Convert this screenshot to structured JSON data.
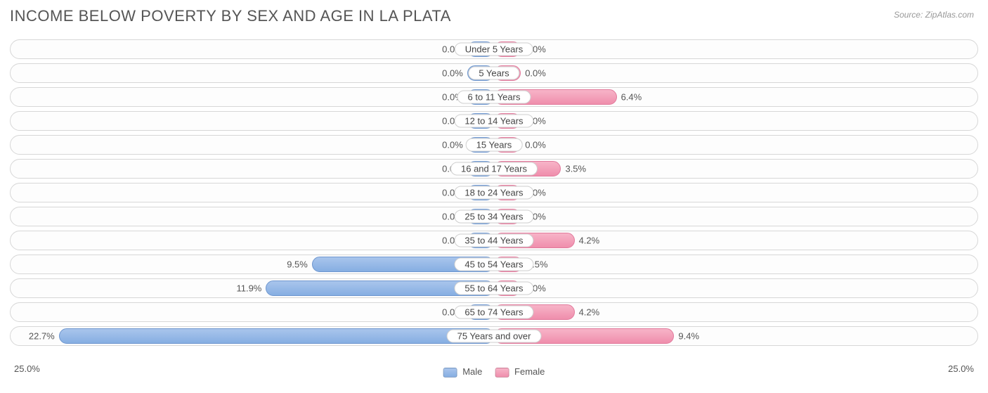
{
  "title": "INCOME BELOW POVERTY BY SEX AND AGE IN LA PLATA",
  "source": "Source: ZipAtlas.com",
  "chart": {
    "type": "diverging-bar",
    "axis_max": 25.0,
    "axis_left_label": "25.0%",
    "axis_right_label": "25.0%",
    "min_bar_pct": 2.8,
    "male_color_top": "#a9c5ec",
    "male_color_bottom": "#86aee2",
    "male_border": "#6f97cf",
    "female_color_top": "#f7b4c8",
    "female_color_bottom": "#ef8eac",
    "female_border": "#e27a9c",
    "row_border_color": "#d7d7d7",
    "background_color": "#ffffff",
    "title_color": "#555555",
    "title_fontsize": 22,
    "value_fontsize": 13,
    "categories": [
      {
        "label": "Under 5 Years",
        "male": 0.0,
        "female": 0.0
      },
      {
        "label": "5 Years",
        "male": 0.0,
        "female": 0.0
      },
      {
        "label": "6 to 11 Years",
        "male": 0.0,
        "female": 6.4
      },
      {
        "label": "12 to 14 Years",
        "male": 0.0,
        "female": 0.0
      },
      {
        "label": "15 Years",
        "male": 0.0,
        "female": 0.0
      },
      {
        "label": "16 and 17 Years",
        "male": 0.0,
        "female": 3.5
      },
      {
        "label": "18 to 24 Years",
        "male": 0.0,
        "female": 0.0
      },
      {
        "label": "25 to 34 Years",
        "male": 0.0,
        "female": 0.0
      },
      {
        "label": "35 to 44 Years",
        "male": 0.0,
        "female": 4.2
      },
      {
        "label": "45 to 54 Years",
        "male": 9.5,
        "female": 1.5
      },
      {
        "label": "55 to 64 Years",
        "male": 11.9,
        "female": 0.0
      },
      {
        "label": "65 to 74 Years",
        "male": 0.0,
        "female": 4.2
      },
      {
        "label": "75 Years and over",
        "male": 22.7,
        "female": 9.4
      }
    ]
  },
  "legend": {
    "male_label": "Male",
    "female_label": "Female"
  }
}
